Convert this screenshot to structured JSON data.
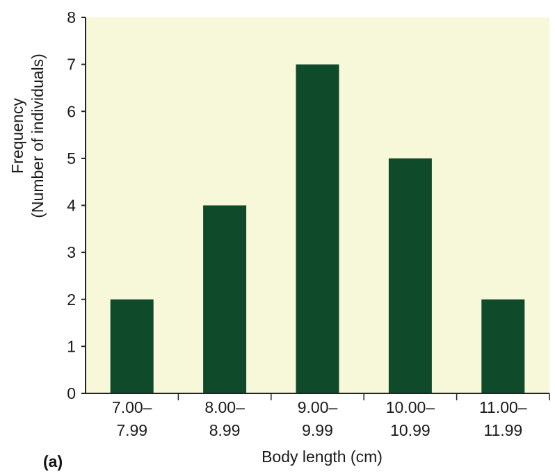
{
  "chart_data": {
    "type": "bar",
    "categories": [
      [
        "7.00–",
        "7.99"
      ],
      [
        "8.00–",
        "8.99"
      ],
      [
        "9.00–",
        "9.99"
      ],
      [
        "10.00–",
        "10.99"
      ],
      [
        "11.00–",
        "11.99"
      ]
    ],
    "values": [
      2,
      4,
      7,
      5,
      2
    ],
    "xlabel": "Body length (cm)",
    "ylabel": [
      "Frequency",
      "(Number of individuals)"
    ],
    "ylim": [
      0,
      8
    ],
    "yticks": [
      "0",
      "1",
      "2",
      "3",
      "4",
      "5",
      "6",
      "7",
      "8"
    ],
    "grid": false,
    "legend": "none",
    "panel_label": "(a)",
    "colors": {
      "bar": "#0f4a2a",
      "plot_background": "#f7f7d9",
      "axis": "#222222"
    }
  }
}
